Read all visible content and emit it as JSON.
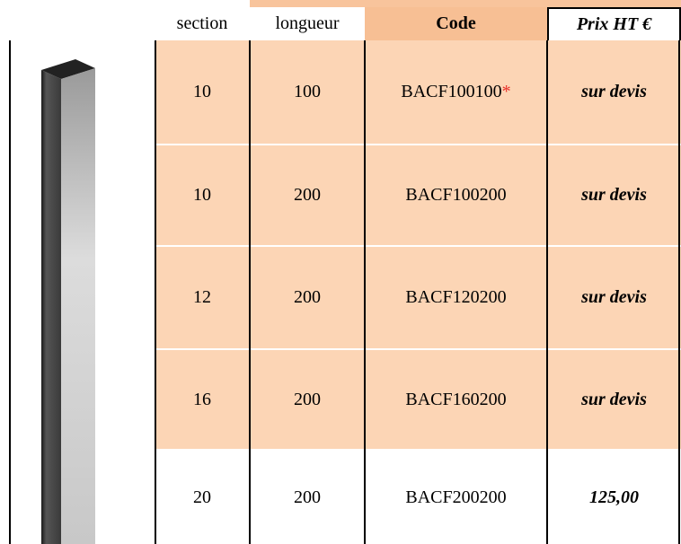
{
  "table": {
    "headers": [
      "section",
      "longueur",
      "Code",
      "Prix HT €"
    ],
    "rows": [
      {
        "cells": [
          "10",
          "100",
          "BACF100100",
          "sur devis"
        ],
        "marker": "*"
      },
      {
        "cells": [
          "10",
          "200",
          "BACF100200",
          "sur devis"
        ]
      },
      {
        "cells": [
          "12",
          "200",
          "BACF120200",
          "sur devis"
        ]
      },
      {
        "cells": [
          "16",
          "200",
          "BACF160200",
          "sur devis"
        ]
      },
      {
        "cells": [
          "20",
          "200",
          "BACF200200",
          "125,00"
        ]
      }
    ]
  }
}
